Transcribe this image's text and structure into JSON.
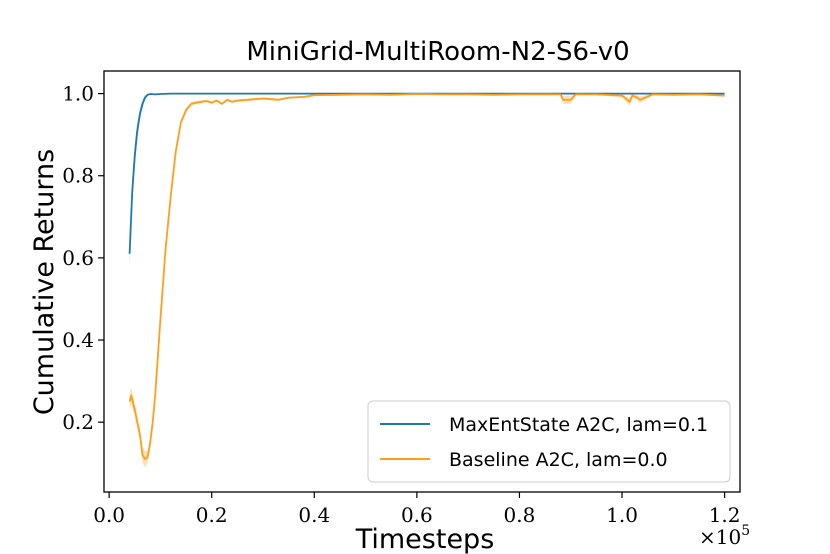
{
  "chart_data": {
    "type": "line",
    "title": "MiniGrid-MultiRoom-N2-S6-v0",
    "xlabel": "Timesteps",
    "ylabel": "Cumulative Returns",
    "x_scale_label": "×10",
    "x_scale_exponent": "5",
    "xlim": [
      -0.01,
      1.23
    ],
    "ylim": [
      0.03,
      1.055
    ],
    "xticks": [
      0.0,
      0.2,
      0.4,
      0.6,
      0.8,
      1.0,
      1.2
    ],
    "xtick_labels": [
      "0.0",
      "0.2",
      "0.4",
      "0.6",
      "0.8",
      "1.0",
      "1.2"
    ],
    "yticks": [
      0.2,
      0.4,
      0.6,
      0.8,
      1.0
    ],
    "ytick_labels": [
      "0.2",
      "0.4",
      "0.6",
      "0.8",
      "1.0"
    ],
    "grid": false,
    "legend_position": "lower-right",
    "series": [
      {
        "name": "MaxEntState A2C, lam=0.1",
        "color": "#1f77b4",
        "x": [
          0.04,
          0.045,
          0.05,
          0.055,
          0.06,
          0.065,
          0.07,
          0.075,
          0.08,
          0.09,
          0.1,
          0.12,
          0.15,
          0.2,
          0.3,
          0.4,
          0.5,
          0.6,
          0.7,
          0.8,
          0.9,
          1.0,
          1.1,
          1.2
        ],
        "y": [
          0.61,
          0.76,
          0.85,
          0.91,
          0.95,
          0.975,
          0.99,
          0.997,
          0.999,
          0.998,
          0.999,
          1.0,
          1.0,
          1.0,
          1.0,
          1.0,
          1.0,
          1.0,
          1.0,
          1.0,
          1.0,
          1.0,
          1.0,
          1.0
        ],
        "band": [
          0.03,
          0.03,
          0.03,
          0.02,
          0.015,
          0.01,
          0.006,
          0.003,
          0.002,
          0.001,
          0.001,
          0.0,
          0.0,
          0.0,
          0.0,
          0.0,
          0.0,
          0.0,
          0.0,
          0.0,
          0.0,
          0.0,
          0.0,
          0.0
        ]
      },
      {
        "name": "Baseline A2C, lam=0.0",
        "color": "#ff9f1c",
        "x": [
          0.04,
          0.043,
          0.046,
          0.05,
          0.055,
          0.06,
          0.065,
          0.07,
          0.075,
          0.08,
          0.085,
          0.09,
          0.1,
          0.11,
          0.12,
          0.13,
          0.14,
          0.15,
          0.16,
          0.17,
          0.18,
          0.19,
          0.2,
          0.21,
          0.22,
          0.23,
          0.24,
          0.25,
          0.27,
          0.3,
          0.33,
          0.35,
          0.38,
          0.4,
          0.45,
          0.5,
          0.55,
          0.6,
          0.65,
          0.7,
          0.75,
          0.8,
          0.85,
          0.88,
          0.885,
          0.9,
          0.91,
          0.915,
          0.95,
          1.0,
          1.015,
          1.02,
          1.03,
          1.035,
          1.06,
          1.1,
          1.15,
          1.2
        ],
        "y": [
          0.25,
          0.265,
          0.25,
          0.23,
          0.2,
          0.17,
          0.12,
          0.11,
          0.115,
          0.15,
          0.2,
          0.27,
          0.45,
          0.62,
          0.75,
          0.86,
          0.93,
          0.96,
          0.975,
          0.978,
          0.98,
          0.982,
          0.978,
          0.983,
          0.975,
          0.985,
          0.98,
          0.983,
          0.985,
          0.988,
          0.985,
          0.99,
          0.992,
          0.996,
          0.997,
          0.998,
          0.997,
          0.999,
          0.998,
          0.998,
          0.997,
          0.998,
          0.998,
          0.998,
          0.985,
          0.985,
          0.998,
          0.998,
          0.998,
          0.995,
          0.98,
          0.995,
          0.99,
          0.985,
          0.998,
          0.997,
          0.998,
          0.995
        ],
        "band": [
          0.02,
          0.02,
          0.02,
          0.015,
          0.015,
          0.015,
          0.02,
          0.02,
          0.015,
          0.015,
          0.015,
          0.015,
          0.012,
          0.012,
          0.01,
          0.01,
          0.008,
          0.006,
          0.004,
          0.004,
          0.004,
          0.003,
          0.003,
          0.003,
          0.003,
          0.003,
          0.003,
          0.003,
          0.003,
          0.003,
          0.003,
          0.002,
          0.002,
          0.002,
          0.002,
          0.002,
          0.002,
          0.002,
          0.002,
          0.002,
          0.002,
          0.002,
          0.002,
          0.002,
          0.01,
          0.01,
          0.002,
          0.002,
          0.002,
          0.004,
          0.01,
          0.004,
          0.006,
          0.008,
          0.002,
          0.002,
          0.002,
          0.003
        ]
      }
    ]
  }
}
